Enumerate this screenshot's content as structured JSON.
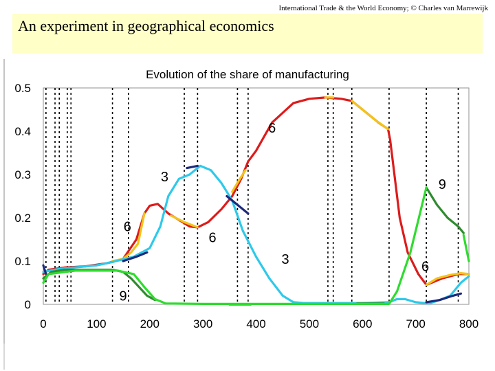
{
  "header": {
    "credit": "International Trade & the World Economy; © Charles van Marrewijk"
  },
  "slide": {
    "title": "An experiment in geographical economics"
  },
  "chart_data": {
    "type": "line",
    "title": "Evolution of the share of manufacturing",
    "xlabel": "",
    "ylabel": "",
    "xlim": [
      0,
      800
    ],
    "ylim": [
      0,
      0.5
    ],
    "x_ticks": [
      "0",
      "100",
      "200",
      "300",
      "400",
      "500",
      "600",
      "700",
      "800"
    ],
    "y_ticks": [
      "0",
      "0.1",
      "0.2",
      "0.3",
      "0.4",
      "0.5"
    ],
    "grid": false,
    "legend": "none",
    "event_lines": [
      5,
      22,
      30,
      45,
      52,
      130,
      160,
      265,
      290,
      365,
      385,
      535,
      545,
      580,
      650,
      720,
      780
    ],
    "series": [
      {
        "color": "#dd1b1b",
        "points": [
          [
            0,
            0.07
          ],
          [
            10,
            0.08
          ],
          [
            40,
            0.085
          ],
          [
            80,
            0.088
          ],
          [
            120,
            0.095
          ],
          [
            150,
            0.105
          ],
          [
            175,
            0.15
          ],
          [
            190,
            0.21
          ],
          [
            200,
            0.228
          ],
          [
            215,
            0.232
          ],
          [
            235,
            0.21
          ],
          [
            255,
            0.195
          ],
          [
            275,
            0.18
          ],
          [
            290,
            0.178
          ],
          [
            310,
            0.19
          ],
          [
            335,
            0.22
          ],
          [
            355,
            0.25
          ],
          [
            372,
            0.29
          ],
          [
            385,
            0.33
          ],
          [
            400,
            0.355
          ],
          [
            430,
            0.42
          ],
          [
            470,
            0.465
          ],
          [
            500,
            0.475
          ],
          [
            530,
            0.478
          ],
          [
            560,
            0.475
          ],
          [
            580,
            0.47
          ],
          [
            600,
            0.45
          ],
          [
            630,
            0.42
          ],
          [
            648,
            0.405
          ],
          [
            652,
            0.38
          ],
          [
            660,
            0.3
          ],
          [
            670,
            0.2
          ],
          [
            685,
            0.12
          ],
          [
            705,
            0.07
          ],
          [
            720,
            0.045
          ],
          [
            730,
            0.05
          ],
          [
            750,
            0.06
          ],
          [
            780,
            0.07
          ],
          [
            800,
            0.07
          ]
        ]
      },
      {
        "color": "#f2c418",
        "segments": [
          [
            [
              130,
              0.1
            ],
            [
              150,
              0.105
            ],
            [
              165,
              0.12
            ],
            [
              178,
              0.14
            ],
            [
              190,
              0.21
            ]
          ],
          [
            [
              240,
              0.205
            ],
            [
              265,
              0.19
            ],
            [
              290,
              0.178
            ]
          ],
          [
            [
              355,
              0.26
            ],
            [
              367,
              0.285
            ],
            [
              380,
              0.31
            ]
          ],
          [
            [
              530,
              0.478
            ],
            [
              545,
              0.478
            ]
          ],
          [
            [
              580,
              0.47
            ],
            [
              600,
              0.45
            ],
            [
              625,
              0.425
            ],
            [
              648,
              0.405
            ]
          ],
          [
            [
              720,
              0.045
            ],
            [
              740,
              0.06
            ],
            [
              765,
              0.068
            ],
            [
              785,
              0.072
            ],
            [
              800,
              0.07
            ]
          ]
        ]
      },
      {
        "color": "#2ec9ea",
        "points": [
          [
            0,
            0.075
          ],
          [
            30,
            0.082
          ],
          [
            100,
            0.09
          ],
          [
            130,
            0.098
          ],
          [
            170,
            0.11
          ],
          [
            200,
            0.13
          ],
          [
            220,
            0.18
          ],
          [
            235,
            0.25
          ],
          [
            255,
            0.29
          ],
          [
            275,
            0.3
          ],
          [
            295,
            0.32
          ],
          [
            315,
            0.31
          ],
          [
            335,
            0.28
          ],
          [
            355,
            0.24
          ],
          [
            375,
            0.17
          ],
          [
            400,
            0.11
          ],
          [
            425,
            0.06
          ],
          [
            450,
            0.02
          ],
          [
            470,
            0.005
          ],
          [
            490,
            0.003
          ],
          [
            600,
            0.003
          ],
          [
            650,
            0.005
          ],
          [
            665,
            0.012
          ],
          [
            680,
            0.012
          ],
          [
            700,
            0.005
          ],
          [
            725,
            0.002
          ],
          [
            745,
            0.01
          ],
          [
            765,
            0.02
          ],
          [
            785,
            0.05
          ],
          [
            800,
            0.065
          ]
        ]
      },
      {
        "color": "#1c2a7c",
        "segments": [
          [
            [
              0,
              0.09
            ],
            [
              5,
              0.07
            ]
          ],
          [
            [
              150,
              0.1
            ],
            [
              175,
              0.11
            ],
            [
              195,
              0.12
            ]
          ],
          [
            [
              270,
              0.315
            ],
            [
              290,
              0.32
            ]
          ],
          [
            [
              345,
              0.25
            ],
            [
              365,
              0.23
            ],
            [
              385,
              0.21
            ]
          ],
          [
            [
              720,
              0.005
            ],
            [
              745,
              0.01
            ],
            [
              770,
              0.02
            ],
            [
              785,
              0.025
            ]
          ]
        ]
      },
      {
        "color": "#2e8b2e",
        "segments": [
          [
            [
              0,
              0.06
            ],
            [
              15,
              0.075
            ],
            [
              40,
              0.08
            ],
            [
              80,
              0.08
            ],
            [
              130,
              0.08
            ],
            [
              150,
              0.075
            ],
            [
              165,
              0.06
            ],
            [
              180,
              0.04
            ],
            [
              195,
              0.02
            ],
            [
              210,
              0.01
            ]
          ],
          [
            [
              720,
              0.27
            ],
            [
              740,
              0.23
            ],
            [
              760,
              0.2
            ],
            [
              780,
              0.18
            ],
            [
              790,
              0.165
            ]
          ],
          [
            [
              350,
              0.0
            ],
            [
              390,
              0.0
            ]
          ],
          [
            [
              590,
              0.002
            ],
            [
              640,
              0.002
            ]
          ]
        ]
      },
      {
        "color": "#2edc2e",
        "points": [
          [
            0,
            0.05
          ],
          [
            10,
            0.07
          ],
          [
            60,
            0.078
          ],
          [
            140,
            0.078
          ],
          [
            170,
            0.07
          ],
          [
            190,
            0.04
          ],
          [
            210,
            0.012
          ],
          [
            230,
            0.002
          ],
          [
            300,
            0.001
          ],
          [
            650,
            0.001
          ],
          [
            665,
            0.03
          ],
          [
            690,
            0.12
          ],
          [
            710,
            0.22
          ],
          [
            720,
            0.27
          ]
        ]
      },
      {
        "color": "#2edc2e",
        "segments": [
          [
            [
              790,
              0.16
            ],
            [
              795,
              0.13
            ],
            [
              800,
              0.1
            ]
          ]
        ]
      }
    ],
    "annotations": [
      {
        "text": "6",
        "x": 430,
        "y": 0.408
      },
      {
        "text": "3",
        "x": 228,
        "y": 0.295
      },
      {
        "text": "6",
        "x": 158,
        "y": 0.18
      },
      {
        "text": "6",
        "x": 318,
        "y": 0.155
      },
      {
        "text": "3",
        "x": 455,
        "y": 0.105
      },
      {
        "text": "9",
        "x": 150,
        "y": 0.02
      },
      {
        "text": "9",
        "x": 750,
        "y": 0.278
      },
      {
        "text": "6",
        "x": 718,
        "y": 0.088
      }
    ]
  }
}
